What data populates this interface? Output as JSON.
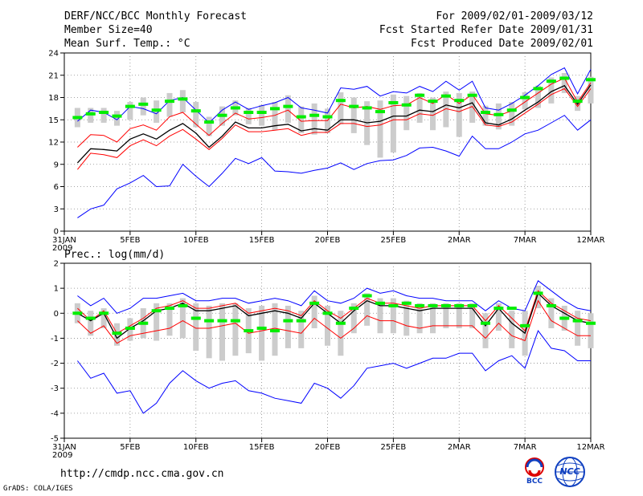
{
  "header": {
    "title": "DERF/NCC/BCC Monthly Forecast",
    "member_size": "Member Size=40",
    "variable": "Mean Surf. Temp.: °C",
    "period": "For 2009/02/01-2009/03/12",
    "started": "Fcst Started Refer Date 2009/01/31",
    "produced": "Fcst Produced Date 2009/02/01"
  },
  "footer": {
    "url": "http://cmdp.ncc.cma.gov.cn",
    "grads": "GrADS: COLA/IGES",
    "logo_bcc": "BCC",
    "logo_ncc": "NCC"
  },
  "colors": {
    "max_min": "#0000ff",
    "quartile": "#ff0000",
    "mean": "#000000",
    "median": "#00ee00",
    "box": "#cccccc",
    "grid": "#888888"
  },
  "chart_data": [
    {
      "type": "line",
      "title": "Mean Surf. Temp.: °C",
      "xlabel": "",
      "ylabel": "",
      "ylim": [
        0,
        24
      ],
      "yticks": [
        0,
        3,
        6,
        9,
        12,
        15,
        18,
        21,
        24
      ],
      "xticks": [
        {
          "day": 0,
          "label": "31JAN"
        },
        {
          "day": 5,
          "label": "5FEB"
        },
        {
          "day": 10,
          "label": "10FEB"
        },
        {
          "day": 15,
          "label": "15FEB"
        },
        {
          "day": 20,
          "label": "20FEB"
        },
        {
          "day": 25,
          "label": "25FEB"
        },
        {
          "day": 30,
          "label": "2MAR"
        },
        {
          "day": 35,
          "label": "7MAR"
        },
        {
          "day": 40,
          "label": "12MAR"
        }
      ],
      "year_label": "2009",
      "days": [
        1,
        2,
        3,
        4,
        5,
        6,
        7,
        8,
        9,
        10,
        11,
        12,
        13,
        14,
        15,
        16,
        17,
        18,
        19,
        20,
        21,
        22,
        23,
        24,
        25,
        26,
        27,
        28,
        29,
        30,
        31,
        32,
        33,
        34,
        35,
        36,
        37,
        38,
        39,
        40
      ],
      "series": [
        {
          "name": "max",
          "values": [
            14.8,
            16.3,
            16.0,
            15.0,
            16.8,
            16.5,
            15.8,
            17.6,
            18.0,
            16.3,
            14.6,
            16.3,
            17.4,
            16.4,
            16.9,
            17.3,
            18.0,
            16.6,
            16.3,
            15.9,
            19.3,
            19.1,
            19.5,
            18.2,
            18.8,
            18.6,
            19.5,
            18.8,
            20.2,
            19.0,
            20.2,
            16.6,
            16.3,
            17.2,
            18.3,
            19.6,
            21.1,
            22.0,
            18.5,
            21.8
          ]
        },
        {
          "name": "q75",
          "values": [
            11.3,
            13.0,
            12.9,
            12.0,
            13.8,
            14.3,
            13.6,
            15.4,
            16.0,
            14.4,
            12.9,
            14.5,
            15.9,
            15.1,
            15.3,
            15.6,
            16.3,
            14.8,
            14.9,
            14.9,
            17.1,
            16.6,
            16.8,
            16.4,
            16.9,
            17.0,
            18.0,
            17.2,
            18.4,
            17.2,
            18.4,
            15.8,
            15.6,
            16.2,
            17.4,
            18.6,
            19.8,
            20.6,
            17.4,
            20.0
          ]
        },
        {
          "name": "mean",
          "values": [
            9.2,
            11.1,
            11.0,
            10.8,
            12.4,
            13.1,
            12.4,
            13.6,
            14.5,
            13.2,
            11.3,
            12.8,
            14.7,
            13.9,
            13.9,
            14.2,
            14.4,
            13.5,
            13.8,
            13.6,
            15.0,
            15.0,
            14.6,
            14.8,
            15.5,
            15.5,
            16.3,
            16.1,
            17.0,
            16.6,
            17.3,
            14.6,
            14.3,
            15.1,
            16.3,
            17.4,
            18.8,
            19.6,
            17.1,
            19.7
          ]
        },
        {
          "name": "q25",
          "values": [
            8.3,
            10.5,
            10.3,
            9.9,
            11.5,
            12.3,
            11.5,
            12.8,
            13.7,
            12.4,
            11.0,
            12.5,
            14.3,
            13.4,
            13.4,
            13.6,
            13.8,
            12.9,
            13.3,
            13.3,
            14.5,
            14.5,
            14.1,
            14.3,
            15.0,
            15.0,
            15.8,
            15.6,
            16.5,
            16.1,
            16.8,
            14.3,
            14.1,
            14.7,
            15.9,
            17.1,
            18.4,
            19.2,
            16.8,
            19.2
          ]
        },
        {
          "name": "min",
          "values": [
            1.8,
            3.0,
            3.5,
            5.7,
            6.5,
            7.5,
            6.0,
            6.1,
            9.0,
            7.4,
            6.0,
            7.8,
            9.8,
            9.1,
            9.9,
            8.1,
            8.0,
            7.8,
            8.2,
            8.5,
            9.2,
            8.3,
            9.1,
            9.5,
            9.6,
            10.2,
            11.2,
            11.3,
            10.8,
            10.1,
            12.8,
            11.1,
            11.1,
            12.0,
            13.1,
            13.6,
            14.6,
            15.6,
            13.6,
            15.0
          ]
        },
        {
          "name": "median",
          "values": [
            15.3,
            15.8,
            16.0,
            15.5,
            16.8,
            17.1,
            16.3,
            17.5,
            17.8,
            16.2,
            14.7,
            15.6,
            16.6,
            16.0,
            16.0,
            16.5,
            16.8,
            15.4,
            15.6,
            15.4,
            17.6,
            16.8,
            16.6,
            16.1,
            17.3,
            17.0,
            18.3,
            17.5,
            18.2,
            17.6,
            18.3,
            16.0,
            15.7,
            16.3,
            18.0,
            19.2,
            20.2,
            20.6,
            17.5,
            20.4
          ]
        },
        {
          "name": "box_top",
          "values": [
            16.6,
            16.6,
            16.6,
            16.2,
            17.4,
            18.0,
            17.6,
            18.6,
            19.0,
            17.4,
            15.4,
            16.8,
            17.6,
            16.6,
            17.0,
            17.4,
            18.3,
            16.8,
            17.2,
            16.5,
            18.7,
            18.0,
            17.5,
            17.6,
            18.4,
            18.2,
            18.6,
            18.0,
            18.8,
            18.6,
            18.8,
            16.9,
            17.2,
            17.4,
            18.7,
            19.6,
            20.7,
            21.3,
            18.2,
            20.8
          ]
        },
        {
          "name": "box_bottom",
          "values": [
            14.0,
            14.6,
            14.6,
            14.2,
            15.0,
            15.6,
            14.6,
            15.4,
            16.0,
            14.0,
            12.8,
            14.2,
            15.6,
            14.4,
            14.2,
            13.6,
            14.6,
            13.2,
            13.0,
            13.2,
            14.4,
            13.2,
            11.6,
            9.9,
            10.6,
            13.6,
            14.6,
            13.6,
            14.0,
            12.7,
            14.6,
            14.2,
            13.7,
            14.2,
            16.4,
            16.6,
            17.2,
            18.6,
            16.2,
            17.2
          ]
        }
      ]
    },
    {
      "type": "line",
      "title": "Prec.: log(mm/d)",
      "xlabel": "",
      "ylabel": "",
      "ylim": [
        -5,
        2
      ],
      "yticks": [
        -5,
        -4,
        -3,
        -2,
        -1,
        0,
        1,
        2
      ],
      "xticks": [
        {
          "day": 0,
          "label": "31JAN"
        },
        {
          "day": 5,
          "label": "5FEB"
        },
        {
          "day": 10,
          "label": "10FEB"
        },
        {
          "day": 15,
          "label": "15FEB"
        },
        {
          "day": 20,
          "label": "20FEB"
        },
        {
          "day": 25,
          "label": "25FEB"
        },
        {
          "day": 30,
          "label": "2MAR"
        },
        {
          "day": 35,
          "label": "7MAR"
        },
        {
          "day": 40,
          "label": "12MAR"
        }
      ],
      "year_label": "2009",
      "days": [
        1,
        2,
        3,
        4,
        5,
        6,
        7,
        8,
        9,
        10,
        11,
        12,
        13,
        14,
        15,
        16,
        17,
        18,
        19,
        20,
        21,
        22,
        23,
        24,
        25,
        26,
        27,
        28,
        29,
        30,
        31,
        32,
        33,
        34,
        35,
        36,
        37,
        38,
        39,
        40
      ],
      "series": [
        {
          "name": "max",
          "values": [
            0.7,
            0.3,
            0.6,
            0.0,
            0.2,
            0.6,
            0.6,
            0.7,
            0.8,
            0.5,
            0.5,
            0.6,
            0.6,
            0.4,
            0.5,
            0.6,
            0.5,
            0.3,
            0.9,
            0.5,
            0.4,
            0.6,
            1.0,
            0.8,
            0.9,
            0.7,
            0.6,
            0.6,
            0.5,
            0.5,
            0.5,
            0.1,
            0.5,
            0.2,
            0.1,
            1.3,
            0.9,
            0.5,
            0.2,
            0.1
          ]
        },
        {
          "name": "q75",
          "values": [
            0.2,
            -0.3,
            0.1,
            -0.8,
            -0.5,
            -0.2,
            0.2,
            0.3,
            0.5,
            0.2,
            0.2,
            0.3,
            0.4,
            0.0,
            0.1,
            0.2,
            0.1,
            -0.1,
            0.5,
            0.1,
            -0.2,
            0.2,
            0.6,
            0.4,
            0.4,
            0.3,
            0.2,
            0.3,
            0.3,
            0.3,
            0.3,
            -0.3,
            0.3,
            -0.2,
            -0.7,
            0.9,
            0.4,
            0.1,
            -0.2,
            -0.3
          ]
        },
        {
          "name": "mean",
          "values": [
            0.0,
            -0.3,
            0.0,
            -1.0,
            -0.6,
            -0.3,
            0.1,
            0.2,
            0.4,
            0.1,
            0.1,
            0.2,
            0.3,
            -0.1,
            0.0,
            0.1,
            0.0,
            -0.2,
            0.4,
            0.0,
            -0.4,
            0.1,
            0.5,
            0.3,
            0.3,
            0.2,
            0.1,
            0.2,
            0.2,
            0.2,
            0.2,
            -0.5,
            0.2,
            -0.4,
            -0.8,
            0.8,
            0.3,
            0.0,
            -0.3,
            -0.4
          ]
        },
        {
          "name": "q25",
          "values": [
            -0.3,
            -0.8,
            -0.5,
            -1.2,
            -0.9,
            -0.8,
            -0.7,
            -0.6,
            -0.3,
            -0.6,
            -0.6,
            -0.5,
            -0.4,
            -0.8,
            -0.7,
            -0.6,
            -0.7,
            -0.8,
            -0.2,
            -0.6,
            -1.0,
            -0.6,
            -0.1,
            -0.3,
            -0.3,
            -0.5,
            -0.6,
            -0.5,
            -0.5,
            -0.5,
            -0.5,
            -1.0,
            -0.4,
            -0.9,
            -1.1,
            0.5,
            -0.3,
            -0.6,
            -0.9,
            -0.9
          ]
        },
        {
          "name": "min",
          "values": [
            -1.9,
            -2.6,
            -2.4,
            -3.2,
            -3.1,
            -4.0,
            -3.6,
            -2.8,
            -2.3,
            -2.7,
            -3.0,
            -2.8,
            -2.7,
            -3.1,
            -3.2,
            -3.4,
            -3.5,
            -3.6,
            -2.8,
            -3.0,
            -3.4,
            -2.9,
            -2.2,
            -2.1,
            -2.0,
            -2.2,
            -2.0,
            -1.8,
            -1.8,
            -1.6,
            -1.6,
            -2.3,
            -1.9,
            -1.7,
            -2.2,
            -0.7,
            -1.4,
            -1.5,
            -1.9,
            -1.9
          ]
        },
        {
          "name": "median",
          "values": [
            0.0,
            -0.2,
            0.0,
            -0.8,
            -0.6,
            -0.4,
            0.1,
            0.2,
            0.3,
            -0.2,
            -0.3,
            -0.3,
            -0.3,
            -0.7,
            -0.6,
            -0.7,
            -0.3,
            -0.3,
            0.4,
            0.0,
            -0.4,
            0.2,
            0.7,
            0.4,
            0.3,
            0.4,
            0.3,
            0.3,
            0.3,
            0.3,
            0.3,
            -0.4,
            0.2,
            0.2,
            -0.5,
            0.8,
            0.3,
            -0.2,
            -0.3,
            -0.4
          ]
        },
        {
          "name": "box_top",
          "values": [
            0.4,
            0.1,
            0.2,
            -0.4,
            -0.2,
            0.2,
            0.4,
            0.4,
            0.6,
            0.4,
            0.3,
            0.4,
            0.4,
            0.2,
            0.3,
            0.4,
            0.3,
            0.1,
            0.7,
            0.3,
            0.1,
            0.4,
            0.8,
            0.6,
            0.6,
            0.5,
            0.4,
            0.4,
            0.4,
            0.4,
            0.4,
            0.0,
            0.4,
            0.1,
            0.1,
            1.1,
            0.6,
            0.3,
            0.1,
            0.0
          ]
        },
        {
          "name": "box_bottom",
          "values": [
            -0.4,
            -0.9,
            -0.6,
            -1.3,
            -1.1,
            -1.0,
            -1.1,
            -0.9,
            -1.0,
            -1.5,
            -1.8,
            -1.9,
            -1.7,
            -1.6,
            -1.9,
            -1.7,
            -1.4,
            -1.4,
            -0.6,
            -1.3,
            -1.7,
            -0.8,
            -0.5,
            -0.8,
            -0.8,
            -0.9,
            -0.8,
            -0.8,
            -0.6,
            -0.6,
            -0.6,
            -1.4,
            -0.7,
            -1.4,
            -1.7,
            0.2,
            -0.6,
            -0.7,
            -1.3,
            -1.4
          ]
        }
      ]
    }
  ]
}
